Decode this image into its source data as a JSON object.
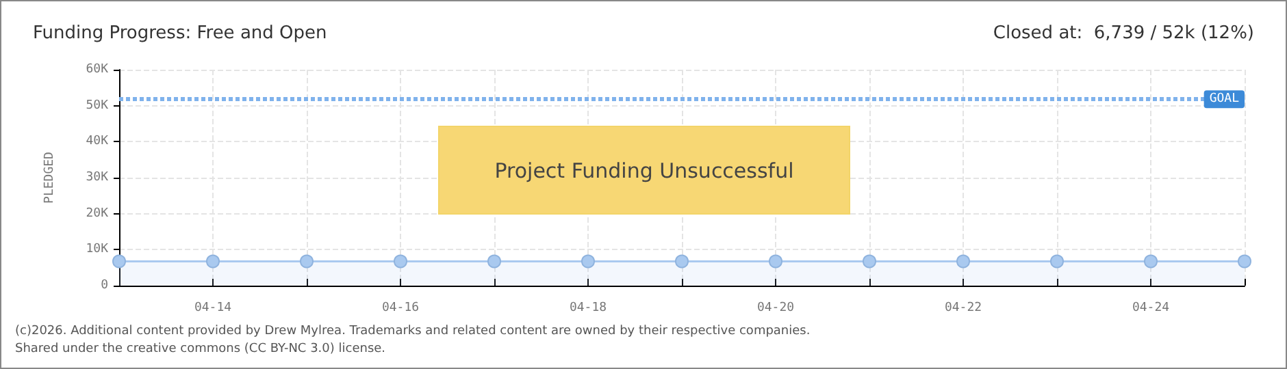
{
  "chart_data": {
    "type": "area",
    "title": "Funding Progress: Free and Open",
    "subtitle": "Closed at:  6,739 / 52k (12%)",
    "ylabel": "PLEDGED",
    "categories": [
      null,
      "04-14",
      null,
      "04-16",
      null,
      "04-18",
      null,
      "04-20",
      null,
      "04-22",
      null,
      "04-24",
      null
    ],
    "series": [
      {
        "color": "#a9c9ef",
        "values": [
          6739,
          6739,
          6739,
          6739,
          6739,
          6739,
          6739,
          6739,
          6739,
          6739,
          6739,
          6739,
          6739
        ]
      }
    ],
    "ylim": [
      0,
      60000
    ],
    "yticks": [
      {
        "value": 0,
        "label": "0"
      },
      {
        "value": 10000,
        "label": "10K"
      },
      {
        "value": 20000,
        "label": "20K"
      },
      {
        "value": 30000,
        "label": "30K"
      },
      {
        "value": 40000,
        "label": "40K"
      },
      {
        "value": 50000,
        "label": "50K"
      },
      {
        "value": 60000,
        "label": "60K"
      }
    ],
    "ref_lines": [
      {
        "axis": "y",
        "value": 52000,
        "label": "GOAL",
        "color": "#7fb2ec",
        "line_style": "dotted"
      }
    ],
    "annotations": [
      "Project Funding Unsuccessful",
      "(c)2026. Additional content provided by Drew Mylrea. Trademarks and related content are owned by their respective companies.",
      "Shared under the creative commons (CC BY-NC 3.0) license."
    ],
    "grid": true,
    "marker": "circle"
  }
}
